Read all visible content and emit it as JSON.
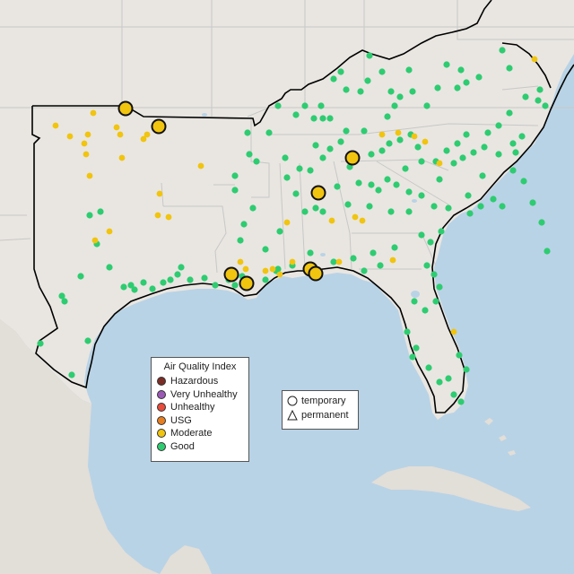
{
  "colors": {
    "ocean": "#b9d3e6",
    "land_us": "#e9e6e1",
    "land_other": "#e2ded8",
    "border": "#000000",
    "state_line": "#c8c8c8",
    "good": "#2ecc71",
    "moderate": "#f1c40f",
    "usg": "#e67e22",
    "unhealthy": "#e74c3c",
    "very_unhealthy": "#9b59b6",
    "hazardous": "#7b2d26"
  },
  "legend": {
    "title": "Air Quality Index",
    "items": [
      {
        "label": "Hazardous",
        "color": "#7b2d26"
      },
      {
        "label": "Very Unhealthy",
        "color": "#9b59b6"
      },
      {
        "label": "Unhealthy",
        "color": "#e74c3c"
      },
      {
        "label": "USG",
        "color": "#e67e22"
      },
      {
        "label": "Moderate",
        "color": "#f1c40f"
      },
      {
        "label": "Good",
        "color": "#2ecc71"
      }
    ]
  },
  "monitor_types": {
    "temporary": "temporary",
    "permanent": "permanent"
  },
  "stations": {
    "good": [
      [
        45,
        383
      ],
      [
        80,
        418
      ],
      [
        98,
        380
      ],
      [
        69,
        330
      ],
      [
        72,
        336
      ],
      [
        90,
        308
      ],
      [
        108,
        272
      ],
      [
        100,
        240
      ],
      [
        112,
        236
      ],
      [
        122,
        298
      ],
      [
        138,
        320
      ],
      [
        146,
        318
      ],
      [
        150,
        323
      ],
      [
        160,
        315
      ],
      [
        170,
        322
      ],
      [
        182,
        315
      ],
      [
        190,
        312
      ],
      [
        198,
        306
      ],
      [
        202,
        298
      ],
      [
        212,
        312
      ],
      [
        228,
        310
      ],
      [
        240,
        318
      ],
      [
        255,
        312
      ],
      [
        262,
        318
      ],
      [
        270,
        308
      ],
      [
        276,
        148
      ],
      [
        278,
        172
      ],
      [
        286,
        180
      ],
      [
        262,
        212
      ],
      [
        272,
        250
      ],
      [
        296,
        278
      ],
      [
        300,
        148
      ],
      [
        310,
        118
      ],
      [
        320,
        198
      ],
      [
        330,
        128
      ],
      [
        340,
        118
      ],
      [
        350,
        132
      ],
      [
        360,
        132
      ],
      [
        358,
        118
      ],
      [
        368,
        132
      ],
      [
        372,
        88
      ],
      [
        380,
        80
      ],
      [
        386,
        100
      ],
      [
        402,
        102
      ],
      [
        410,
        90
      ],
      [
        412,
        62
      ],
      [
        426,
        80
      ],
      [
        436,
        102
      ],
      [
        432,
        130
      ],
      [
        440,
        118
      ],
      [
        446,
        108
      ],
      [
        456,
        78
      ],
      [
        460,
        102
      ],
      [
        476,
        118
      ],
      [
        488,
        98
      ],
      [
        498,
        72
      ],
      [
        510,
        98
      ],
      [
        514,
        78
      ],
      [
        520,
        92
      ],
      [
        534,
        86
      ],
      [
        560,
        56
      ],
      [
        568,
        76
      ],
      [
        586,
        108
      ],
      [
        600,
        112
      ],
      [
        602,
        100
      ],
      [
        608,
        118
      ],
      [
        568,
        126
      ],
      [
        556,
        140
      ],
      [
        544,
        148
      ],
      [
        520,
        150
      ],
      [
        510,
        160
      ],
      [
        498,
        168
      ],
      [
        486,
        180
      ],
      [
        470,
        180
      ],
      [
        466,
        164
      ],
      [
        458,
        150
      ],
      [
        446,
        156
      ],
      [
        434,
        160
      ],
      [
        426,
        168
      ],
      [
        414,
        172
      ],
      [
        406,
        146
      ],
      [
        386,
        146
      ],
      [
        380,
        158
      ],
      [
        368,
        166
      ],
      [
        360,
        176
      ],
      [
        352,
        162
      ],
      [
        346,
        190
      ],
      [
        334,
        188
      ],
      [
        330,
        216
      ],
      [
        352,
        232
      ],
      [
        360,
        236
      ],
      [
        376,
        208
      ],
      [
        388,
        228
      ],
      [
        400,
        204
      ],
      [
        414,
        206
      ],
      [
        422,
        212
      ],
      [
        432,
        200
      ],
      [
        442,
        206
      ],
      [
        452,
        188
      ],
      [
        456,
        214
      ],
      [
        470,
        218
      ],
      [
        490,
        200
      ],
      [
        506,
        182
      ],
      [
        516,
        176
      ],
      [
        528,
        170
      ],
      [
        540,
        164
      ],
      [
        556,
        172
      ],
      [
        572,
        160
      ],
      [
        582,
        152
      ],
      [
        572,
        190
      ],
      [
        538,
        196
      ],
      [
        522,
        218
      ],
      [
        500,
        232
      ],
      [
        492,
        258
      ],
      [
        480,
        270
      ],
      [
        476,
        296
      ],
      [
        484,
        306
      ],
      [
        490,
        320
      ],
      [
        486,
        336
      ],
      [
        474,
        346
      ],
      [
        462,
        336
      ],
      [
        454,
        370
      ],
      [
        464,
        388
      ],
      [
        460,
        398
      ],
      [
        478,
        410
      ],
      [
        490,
        426
      ],
      [
        500,
        422
      ],
      [
        506,
        440
      ],
      [
        514,
        448
      ],
      [
        520,
        412
      ],
      [
        512,
        396
      ],
      [
        416,
        282
      ],
      [
        406,
        302
      ],
      [
        394,
        288
      ],
      [
        372,
        292
      ],
      [
        346,
        282
      ],
      [
        312,
        258
      ],
      [
        310,
        300
      ],
      [
        326,
        296
      ],
      [
        340,
        236
      ],
      [
        390,
        186
      ],
      [
        282,
        232
      ],
      [
        268,
        268
      ],
      [
        296,
        312
      ],
      [
        308,
        302
      ],
      [
        262,
        196
      ],
      [
        318,
        176
      ],
      [
        436,
        236
      ],
      [
        456,
        236
      ],
      [
        470,
        262
      ],
      [
        440,
        276
      ],
      [
        424,
        296
      ],
      [
        412,
        230
      ],
      [
        484,
        230
      ],
      [
        524,
        238
      ],
      [
        536,
        230
      ],
      [
        550,
        222
      ],
      [
        560,
        230
      ],
      [
        575,
        170
      ],
      [
        584,
        202
      ],
      [
        594,
        226
      ],
      [
        604,
        248
      ],
      [
        610,
        280
      ]
    ],
    "moderate": [
      [
        62,
        140
      ],
      [
        78,
        152
      ],
      [
        94,
        160
      ],
      [
        98,
        150
      ],
      [
        96,
        172
      ],
      [
        100,
        196
      ],
      [
        104,
        126
      ],
      [
        130,
        142
      ],
      [
        134,
        150
      ],
      [
        136,
        176
      ],
      [
        160,
        155
      ],
      [
        164,
        150
      ],
      [
        178,
        216
      ],
      [
        176,
        240
      ],
      [
        188,
        242
      ],
      [
        122,
        258
      ],
      [
        106,
        268
      ],
      [
        224,
        185
      ],
      [
        268,
        292
      ],
      [
        274,
        300
      ],
      [
        296,
        302
      ],
      [
        304,
        300
      ],
      [
        312,
        306
      ],
      [
        326,
        292
      ],
      [
        320,
        248
      ],
      [
        370,
        246
      ],
      [
        378,
        292
      ],
      [
        396,
        242
      ],
      [
        404,
        246
      ],
      [
        438,
        290
      ],
      [
        426,
        150
      ],
      [
        444,
        148
      ],
      [
        462,
        152
      ],
      [
        474,
        158
      ],
      [
        490,
        182
      ],
      [
        506,
        370
      ],
      [
        356,
        308
      ],
      [
        596,
        66
      ]
    ],
    "moderate_large": [
      [
        140,
        121
      ],
      [
        177,
        141
      ],
      [
        393,
        176
      ],
      [
        355,
        215
      ],
      [
        258,
        306
      ],
      [
        275,
        316
      ],
      [
        346,
        300
      ],
      [
        352,
        305
      ]
    ]
  }
}
